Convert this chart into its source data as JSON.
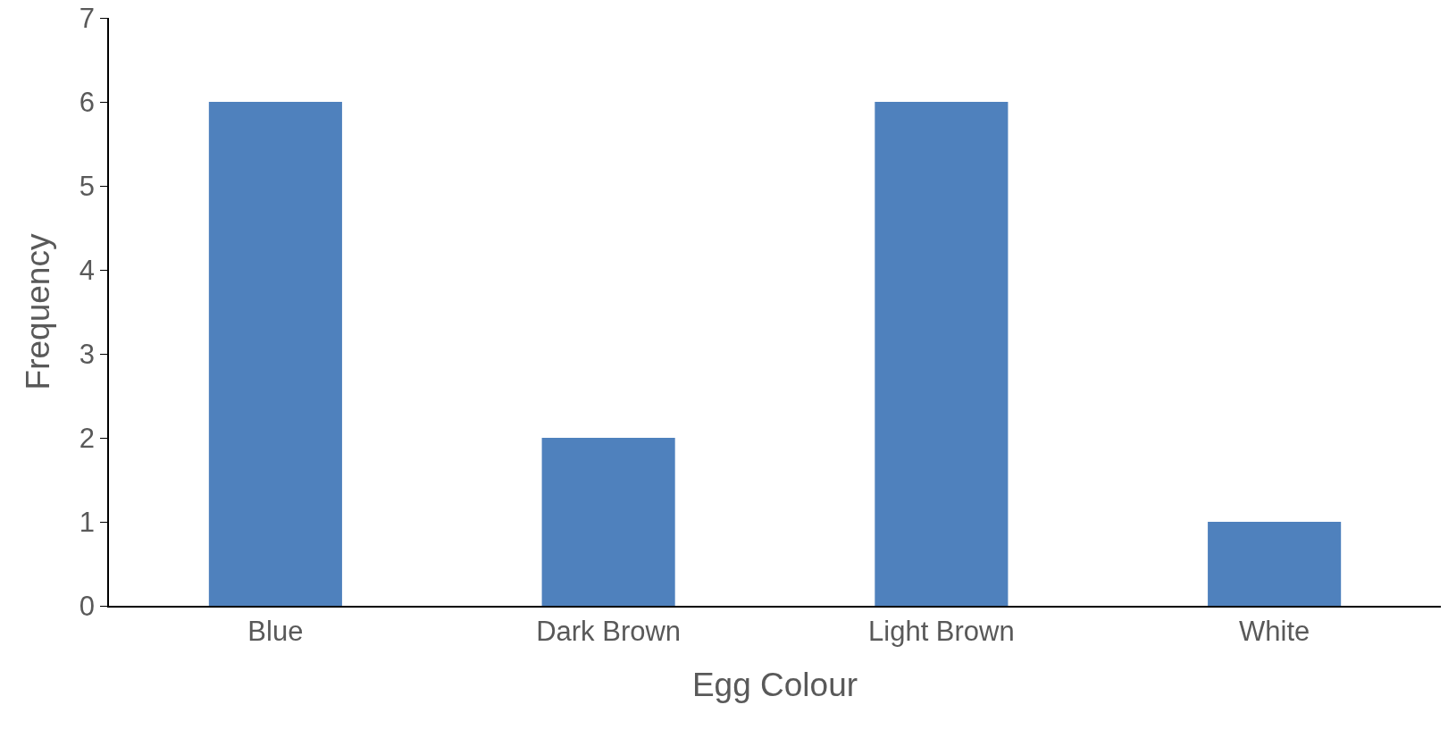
{
  "chart_data": {
    "type": "bar",
    "xlabel": "Egg Colour",
    "ylabel": "Frequency",
    "categories": [
      "Blue",
      "Dark Brown",
      "Light Brown",
      "White"
    ],
    "values": [
      6,
      2,
      6,
      1
    ],
    "color": "#4f81bd",
    "ylim": [
      0,
      7
    ],
    "yticks": [
      0,
      1,
      2,
      3,
      4,
      5,
      6,
      7
    ],
    "grid": false,
    "legend": false
  }
}
